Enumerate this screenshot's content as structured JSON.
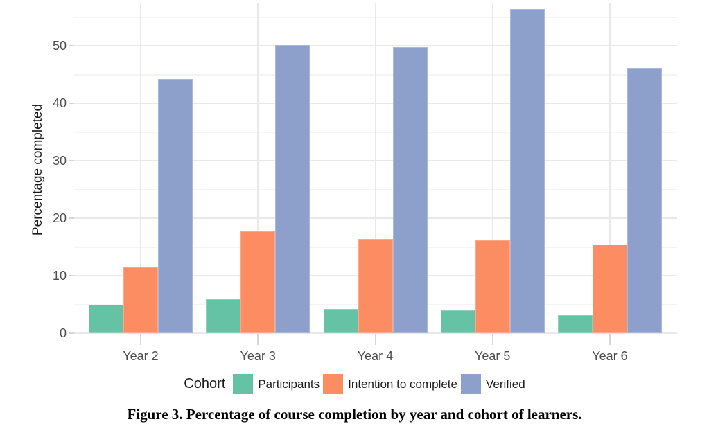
{
  "figure": {
    "caption": "Figure 3. Percentage of course completion by year and cohort of learners."
  },
  "chart_data": {
    "type": "bar",
    "title": "",
    "xlabel": "",
    "ylabel": "Percentage completed",
    "categories": [
      "Year 2",
      "Year 3",
      "Year 4",
      "Year 5",
      "Year 6"
    ],
    "series": [
      {
        "name": "Participants",
        "color": "#66C2A5",
        "values": [
          5.0,
          5.9,
          4.2,
          4.0,
          3.1
        ]
      },
      {
        "name": "Intention to complete",
        "color": "#FC8D62",
        "values": [
          11.5,
          17.7,
          16.4,
          16.1,
          15.4
        ]
      },
      {
        "name": "Verified",
        "color": "#8DA0CB",
        "values": [
          44.2,
          50.1,
          49.7,
          56.4,
          46.1
        ]
      }
    ],
    "y_ticks": [
      0,
      10,
      20,
      30,
      40,
      50
    ],
    "y_minor_ticks": [
      5,
      15,
      25,
      35,
      45,
      55
    ],
    "ylim": [
      0,
      57.5
    ],
    "grid": true,
    "legend_title": "Cohort",
    "legend_position": "bottom",
    "axis_text_color": "#4d4d4d"
  }
}
